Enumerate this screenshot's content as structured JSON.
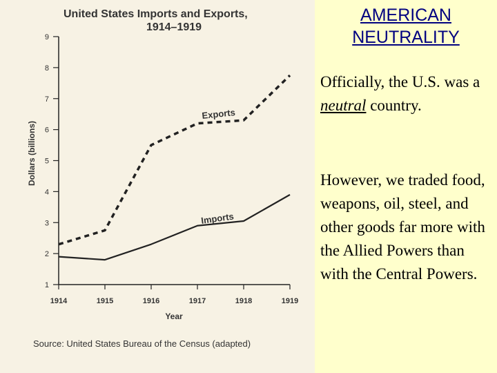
{
  "slide": {
    "title_line1": "AMERICAN",
    "title_line2": "NEUTRALITY",
    "bullet1": {
      "before": "Officially, the U.S. was a ",
      "emphasis": "neutral",
      "after": " country."
    },
    "bullet2": "However, we traded food, weapons, oil, steel, and other goods far more with the Allied Powers than with the Central Powers."
  },
  "chart_data": {
    "type": "line",
    "title_line1": "United States Imports and Exports,",
    "title_line2": "1914–1919",
    "xlabel": "Year",
    "ylabel": "Dollars (billions)",
    "x": [
      1914,
      1915,
      1916,
      1917,
      1918,
      1919
    ],
    "x_tick_labels": [
      "1914",
      "1915",
      "1916",
      "1917",
      "1918",
      "1919"
    ],
    "y_ticks": [
      1,
      2,
      3,
      4,
      5,
      6,
      7,
      8,
      9
    ],
    "ylim": [
      1,
      9
    ],
    "grid": false,
    "series": [
      {
        "name": "Exports",
        "style": "dashed",
        "values": [
          2.3,
          2.75,
          5.5,
          6.2,
          6.3,
          7.75
        ]
      },
      {
        "name": "Imports",
        "style": "solid",
        "values": [
          1.9,
          1.8,
          2.3,
          2.9,
          3.05,
          3.9
        ]
      }
    ],
    "source": "Source: United States Bureau of the Census (adapted)",
    "colors": {
      "line": "#222222",
      "text": "#333333"
    }
  }
}
